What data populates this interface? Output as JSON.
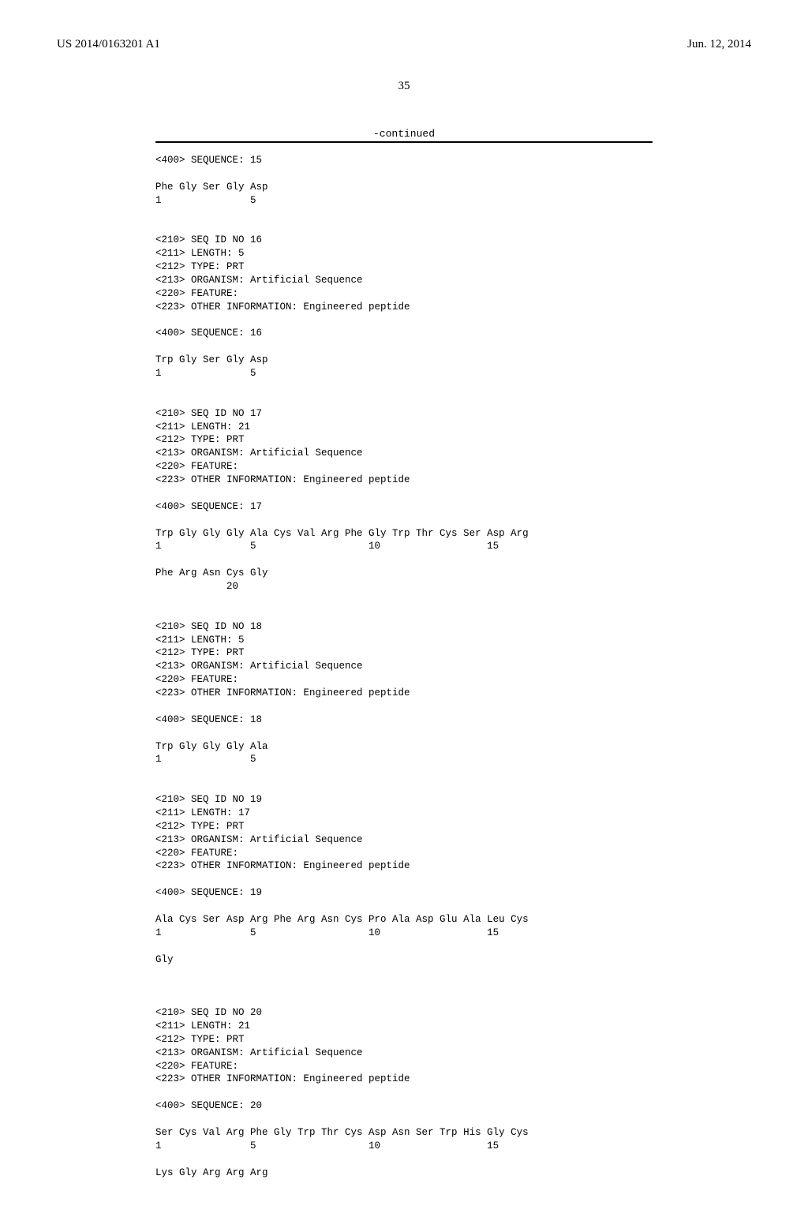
{
  "header": {
    "pub_number": "US 2014/0163201 A1",
    "pub_date": "Jun. 12, 2014"
  },
  "page_number": "35",
  "continued_label": "-continued",
  "sequences": [
    {
      "header_lines": [
        "<400> SEQUENCE: 15"
      ],
      "seq_lines": [
        "Phe Gly Ser Gly Asp"
      ],
      "num_lines": [
        "1               5"
      ]
    },
    {
      "header_lines": [
        "<210> SEQ ID NO 16",
        "<211> LENGTH: 5",
        "<212> TYPE: PRT",
        "<213> ORGANISM: Artificial Sequence",
        "<220> FEATURE:",
        "<223> OTHER INFORMATION: Engineered peptide",
        "",
        "<400> SEQUENCE: 16"
      ],
      "seq_lines": [
        "Trp Gly Ser Gly Asp"
      ],
      "num_lines": [
        "1               5"
      ]
    },
    {
      "header_lines": [
        "<210> SEQ ID NO 17",
        "<211> LENGTH: 21",
        "<212> TYPE: PRT",
        "<213> ORGANISM: Artificial Sequence",
        "<220> FEATURE:",
        "<223> OTHER INFORMATION: Engineered peptide",
        "",
        "<400> SEQUENCE: 17"
      ],
      "seq_lines": [
        "Trp Gly Gly Gly Ala Cys Val Arg Phe Gly Trp Thr Cys Ser Asp Arg",
        "Phe Arg Asn Cys Gly"
      ],
      "num_lines": [
        "1               5                   10                  15",
        "            20"
      ]
    },
    {
      "header_lines": [
        "<210> SEQ ID NO 18",
        "<211> LENGTH: 5",
        "<212> TYPE: PRT",
        "<213> ORGANISM: Artificial Sequence",
        "<220> FEATURE:",
        "<223> OTHER INFORMATION: Engineered peptide",
        "",
        "<400> SEQUENCE: 18"
      ],
      "seq_lines": [
        "Trp Gly Gly Gly Ala"
      ],
      "num_lines": [
        "1               5"
      ]
    },
    {
      "header_lines": [
        "<210> SEQ ID NO 19",
        "<211> LENGTH: 17",
        "<212> TYPE: PRT",
        "<213> ORGANISM: Artificial Sequence",
        "<220> FEATURE:",
        "<223> OTHER INFORMATION: Engineered peptide",
        "",
        "<400> SEQUENCE: 19"
      ],
      "seq_lines": [
        "Ala Cys Ser Asp Arg Phe Arg Asn Cys Pro Ala Asp Glu Ala Leu Cys",
        "Gly"
      ],
      "num_lines": [
        "1               5                   10                  15",
        ""
      ]
    },
    {
      "header_lines": [
        "<210> SEQ ID NO 20",
        "<211> LENGTH: 21",
        "<212> TYPE: PRT",
        "<213> ORGANISM: Artificial Sequence",
        "<220> FEATURE:",
        "<223> OTHER INFORMATION: Engineered peptide",
        "",
        "<400> SEQUENCE: 20"
      ],
      "seq_lines": [
        "Ser Cys Val Arg Phe Gly Trp Thr Cys Asp Asn Ser Trp His Gly Cys",
        "Lys Gly Arg Arg Arg"
      ],
      "num_lines": [
        "1               5                   10                  15",
        ""
      ]
    }
  ]
}
